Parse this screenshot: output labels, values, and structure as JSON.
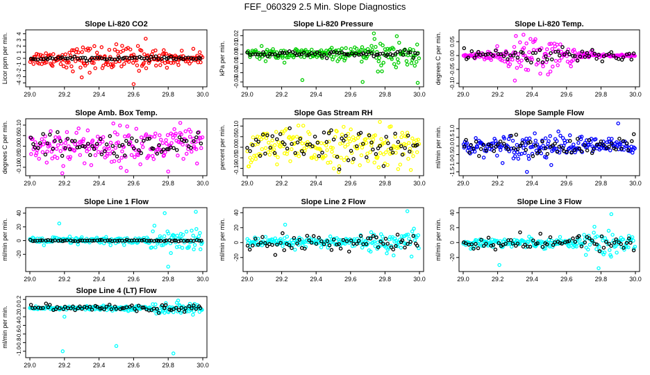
{
  "page_title": "FEF_060329  2.5 Min. Slope Diagnostics",
  "chart_data": [
    {
      "type": "scatter",
      "title": "Slope Li-820 CO2",
      "ylabel": "Licor ppm per min.",
      "xlim": [
        29.0,
        30.0
      ],
      "ylim": [
        -4.3,
        4.3
      ],
      "xticks": [
        "29.0",
        "29.2",
        "29.4",
        "29.6",
        "29.8",
        "30.0"
      ],
      "yticks": [
        -4,
        -3,
        -2,
        -1,
        0,
        1,
        2,
        3,
        4
      ],
      "yticklabels": [
        "-4",
        "-3",
        "-2",
        "-1",
        "0",
        "1",
        "2",
        "3",
        "4"
      ],
      "series": [
        {
          "name": "main",
          "color": "#ff0000",
          "spread": 1.0,
          "envelope": "mid",
          "outliers": [
            [
              29.3,
              -3.1
            ],
            [
              29.6,
              -4.2
            ],
            [
              29.67,
              3.2
            ]
          ]
        },
        {
          "name": "reference",
          "color": "#000000",
          "spread": 0.12
        }
      ]
    },
    {
      "type": "scatter",
      "title": "Slope Li-820 Pressure",
      "ylabel": "kPa per min.",
      "xlim": [
        29.0,
        30.0
      ],
      "ylim": [
        -0.033,
        0.024
      ],
      "xticks": [
        "29.0",
        "29.2",
        "29.4",
        "29.6",
        "29.8",
        "30.0"
      ],
      "yticks": [
        -0.03,
        -0.02,
        -0.01,
        0.0,
        0.01,
        0.02
      ],
      "yticklabels": [
        "-0.03",
        "-0.02",
        "-0.01",
        "0.00",
        "0.01",
        "0.02"
      ],
      "series": [
        {
          "name": "main",
          "color": "#00cc00",
          "spread": 0.007,
          "envelope": "late",
          "outliers": [
            [
              29.32,
              -0.028
            ],
            [
              29.67,
              -0.03
            ],
            [
              29.99,
              -0.031
            ]
          ]
        },
        {
          "name": "reference",
          "color": "#000000",
          "spread": 0.0015
        }
      ]
    },
    {
      "type": "scatter",
      "title": "Slope Li-820 Temp.",
      "ylabel": "degrees C per min.",
      "xlim": [
        29.0,
        30.0
      ],
      "ylim": [
        -0.105,
        0.085
      ],
      "xticks": [
        "29.0",
        "29.2",
        "29.4",
        "29.6",
        "29.8",
        "30.0"
      ],
      "yticks": [
        -0.1,
        -0.05,
        0.0,
        0.05
      ],
      "yticklabels": [
        "-0.10",
        "-0.05",
        "0.00",
        "0.05"
      ],
      "series": [
        {
          "name": "main",
          "color": "#ff00ff",
          "spread": 0.035,
          "envelope": "center",
          "outliers": [
            [
              29.3,
              -0.09
            ],
            [
              29.35,
              0.075
            ]
          ]
        },
        {
          "name": "reference",
          "color": "#000000",
          "spread": 0.012
        }
      ]
    },
    {
      "type": "scatter",
      "title": "Slope Amb. Box Temp.",
      "ylabel": "degrees C per min.",
      "xlim": [
        29.0,
        30.0
      ],
      "ylim": [
        -0.13,
        0.12
      ],
      "xticks": [
        "29.0",
        "29.2",
        "29.4",
        "29.6",
        "29.8",
        "30.0"
      ],
      "yticks": [
        -0.1,
        -0.05,
        0.0,
        0.05,
        0.1
      ],
      "yticklabels": [
        "-0.10",
        "-0.05",
        "0.00",
        "0.05",
        "0.10"
      ],
      "series": [
        {
          "name": "main",
          "color": "#ff00ff",
          "spread": 0.045,
          "envelope": "flat",
          "outliers": [
            [
              29.8,
              -0.12
            ],
            [
              29.87,
              0.11
            ]
          ]
        },
        {
          "name": "reference",
          "color": "#000000",
          "spread": 0.03
        }
      ]
    },
    {
      "type": "scatter",
      "title": "Slope Gas Stream RH",
      "ylabel": "percent per min.",
      "xlim": [
        29.0,
        30.0
      ],
      "ylim": [
        -0.125,
        0.125
      ],
      "xticks": [
        "29.0",
        "29.2",
        "29.4",
        "29.6",
        "29.8",
        "30.0"
      ],
      "yticks": [
        -0.1,
        -0.05,
        0.0,
        0.05,
        0.1
      ],
      "yticklabels": [
        "-0.10",
        "-0.05",
        "0.00",
        "0.05",
        "0.10"
      ],
      "series": [
        {
          "name": "main",
          "color": "#ffff00",
          "spread": 0.045,
          "envelope": "flat",
          "outliers": [
            [
              29.77,
              0.12
            ]
          ]
        },
        {
          "name": "reference",
          "color": "#000000",
          "spread": 0.04
        }
      ]
    },
    {
      "type": "scatter",
      "title": "Slope Sample Flow",
      "ylabel": "ml/min per min.",
      "xlim": [
        29.0,
        30.0
      ],
      "ylim": [
        -1.6,
        1.45
      ],
      "xticks": [
        "29.0",
        "29.2",
        "29.4",
        "29.6",
        "29.8",
        "30.0"
      ],
      "yticks": [
        -1.5,
        -1.0,
        -0.5,
        0.0,
        0.5,
        1.0
      ],
      "yticklabels": [
        "-1.5",
        "-1.0",
        "-0.5",
        "0.0",
        "0.5",
        "1.0"
      ],
      "series": [
        {
          "name": "main",
          "color": "#0000ff",
          "spread": 0.35,
          "envelope": "mid",
          "outliers": [
            [
              29.37,
              -1.5
            ],
            [
              29.9,
              1.3
            ]
          ]
        },
        {
          "name": "reference",
          "color": "#000000",
          "spread": 0.25
        }
      ]
    },
    {
      "type": "scatter",
      "title": "Slope Line 1 Flow",
      "ylabel": "ml/min per min.",
      "xlim": [
        29.0,
        30.0
      ],
      "ylim": [
        -42,
        45
      ],
      "xticks": [
        "29.0",
        "29.2",
        "29.4",
        "29.6",
        "29.8",
        "30.0"
      ],
      "yticks": [
        -20,
        0,
        20,
        40
      ],
      "yticklabels": [
        "-20",
        "0",
        "20",
        "40"
      ],
      "series": [
        {
          "name": "main",
          "color": "#00ffff",
          "spread": 6,
          "envelope": "late",
          "outliers": [
            [
              29.17,
              25
            ],
            [
              29.8,
              -38
            ],
            [
              29.78,
              40
            ],
            [
              29.96,
              42
            ]
          ]
        },
        {
          "name": "reference",
          "color": "#000000",
          "spread": 0.6
        }
      ]
    },
    {
      "type": "scatter",
      "title": "Slope Line 2 Flow",
      "ylabel": "ml/min per min.",
      "xlim": [
        29.0,
        30.0
      ],
      "ylim": [
        -36,
        44
      ],
      "xticks": [
        "29.0",
        "29.2",
        "29.4",
        "29.6",
        "29.8",
        "30.0"
      ],
      "yticks": [
        -20,
        0,
        20,
        40
      ],
      "yticklabels": [
        "-20",
        "0",
        "20",
        "40"
      ],
      "series": [
        {
          "name": "main",
          "color": "#00ffff",
          "spread": 7,
          "envelope": "late",
          "outliers": [
            [
              29.93,
              42
            ],
            [
              29.22,
              24
            ]
          ]
        },
        {
          "name": "reference",
          "color": "#000000",
          "spread": 5
        }
      ]
    },
    {
      "type": "scatter",
      "title": "Slope Line 3 Flow",
      "ylabel": "ml/min per min.",
      "xlim": [
        29.0,
        30.0
      ],
      "ylim": [
        -36,
        44
      ],
      "xticks": [
        "29.0",
        "29.2",
        "29.4",
        "29.6",
        "29.8",
        "30.0"
      ],
      "yticks": [
        -20,
        0,
        20,
        40
      ],
      "yticklabels": [
        "-20",
        "0",
        "20",
        "40"
      ],
      "series": [
        {
          "name": "main",
          "color": "#00ffff",
          "spread": 7,
          "envelope": "late",
          "outliers": [
            [
              29.21,
              -30
            ],
            [
              29.86,
              38
            ]
          ]
        },
        {
          "name": "reference",
          "color": "#000000",
          "spread": 5
        }
      ]
    },
    {
      "type": "scatter",
      "title": "Slope Line 4 (LT) Flow",
      "ylabel": "ml/min per min.",
      "xlim": [
        29.0,
        30.0
      ],
      "ylim": [
        -1.1,
        0.22
      ],
      "xticks": [
        "29.0",
        "29.2",
        "29.4",
        "29.6",
        "29.8",
        "30.0"
      ],
      "yticks": [
        -1.0,
        -0.8,
        -0.6,
        -0.4,
        -0.2,
        0.0,
        0.2
      ],
      "yticklabels": [
        "-1.0",
        "-0.8",
        "-0.6",
        "-0.4",
        "-0.2",
        "0.0",
        "0.2"
      ],
      "series": [
        {
          "name": "main",
          "color": "#00ffff",
          "spread": 0.05,
          "envelope": "late",
          "outliers": [
            [
              29.19,
              -1.0
            ],
            [
              29.5,
              -0.88
            ],
            [
              29.83,
              -1.05
            ],
            [
              29.2,
              -0.2
            ]
          ]
        },
        {
          "name": "reference",
          "color": "#000000",
          "spread": 0.04
        }
      ]
    }
  ]
}
